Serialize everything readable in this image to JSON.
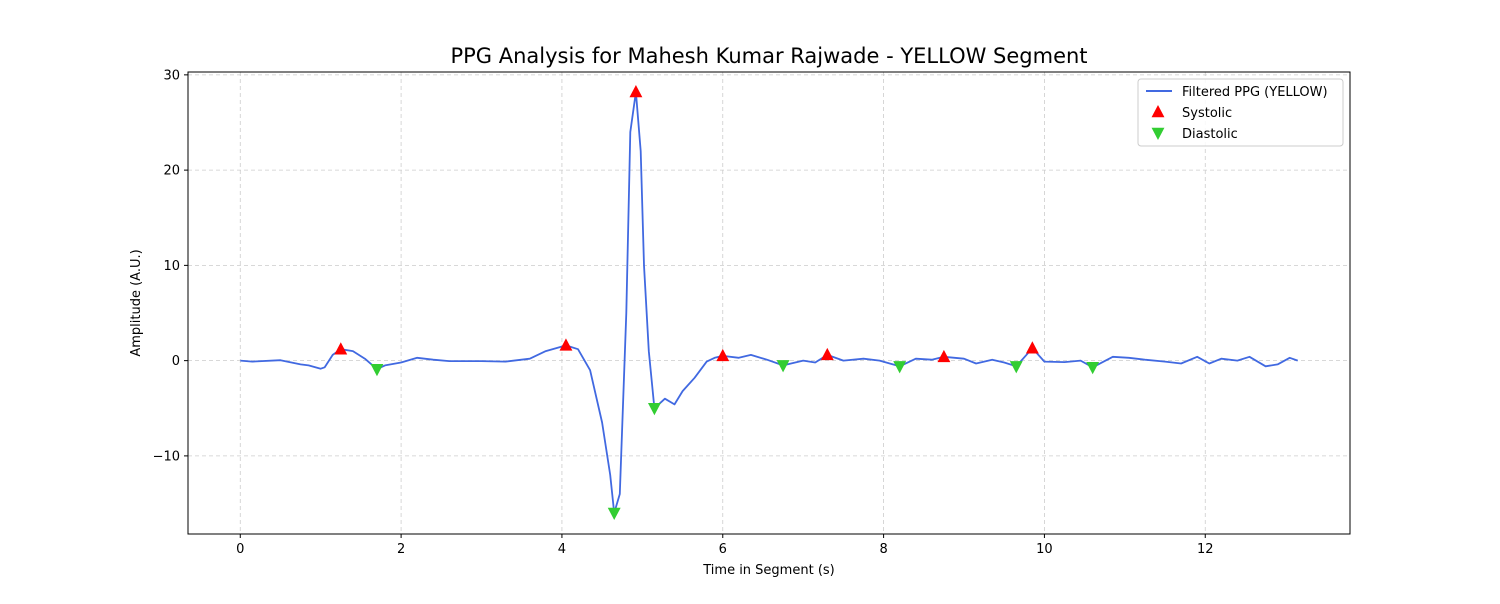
{
  "chart_data": {
    "type": "line",
    "title": "PPG Analysis for Mahesh Kumar Rajwade - YELLOW Segment",
    "xlabel": "Time in Segment (s)",
    "ylabel": "Amplitude (A.U.)",
    "xlim": [
      -0.65,
      13.8
    ],
    "ylim": [
      -18.2,
      30.3
    ],
    "x_ticks": [
      0,
      2,
      4,
      6,
      8,
      10,
      12
    ],
    "y_ticks": [
      -10,
      0,
      10,
      20,
      30
    ],
    "y_tick_labels": [
      "−10",
      "0",
      "10",
      "20",
      "30"
    ],
    "grid": true,
    "legend_position": "top-right",
    "colors": {
      "line": "#4169e1",
      "systolic": "#ff0000",
      "diastolic": "#32cd32",
      "grid": "#cccccc"
    },
    "series": [
      {
        "name": "Filtered PPG (YELLOW)",
        "kind": "line",
        "points": [
          [
            0,
            0
          ],
          [
            0.15,
            -0.1
          ],
          [
            0.5,
            0.05
          ],
          [
            0.75,
            -0.4
          ],
          [
            0.85,
            -0.5
          ],
          [
            1.0,
            -0.85
          ],
          [
            1.05,
            -0.7
          ],
          [
            1.15,
            0.6
          ],
          [
            1.25,
            1.2
          ],
          [
            1.4,
            1.0
          ],
          [
            1.55,
            0.2
          ],
          [
            1.7,
            -0.9
          ],
          [
            1.8,
            -0.5
          ],
          [
            2.0,
            -0.2
          ],
          [
            2.2,
            0.3
          ],
          [
            2.4,
            0.1
          ],
          [
            2.6,
            -0.05
          ],
          [
            3.0,
            -0.05
          ],
          [
            3.3,
            -0.1
          ],
          [
            3.6,
            0.2
          ],
          [
            3.8,
            1.0
          ],
          [
            4.05,
            1.6
          ],
          [
            4.2,
            1.2
          ],
          [
            4.35,
            -1.0
          ],
          [
            4.5,
            -6.5
          ],
          [
            4.6,
            -12.0
          ],
          [
            4.65,
            -16.0
          ],
          [
            4.72,
            -14.0
          ],
          [
            4.8,
            5.0
          ],
          [
            4.85,
            24.0
          ],
          [
            4.92,
            28.2
          ],
          [
            4.98,
            22.0
          ],
          [
            5.02,
            10.0
          ],
          [
            5.08,
            1.0
          ],
          [
            5.15,
            -5.0
          ],
          [
            5.28,
            -4.0
          ],
          [
            5.4,
            -4.6
          ],
          [
            5.5,
            -3.2
          ],
          [
            5.65,
            -1.8
          ],
          [
            5.8,
            -0.1
          ],
          [
            5.9,
            0.3
          ],
          [
            6.0,
            0.5
          ],
          [
            6.2,
            0.3
          ],
          [
            6.35,
            0.6
          ],
          [
            6.55,
            0.1
          ],
          [
            6.75,
            -0.5
          ],
          [
            7.0,
            0.0
          ],
          [
            7.15,
            -0.2
          ],
          [
            7.3,
            0.6
          ],
          [
            7.5,
            0.0
          ],
          [
            7.75,
            0.2
          ],
          [
            7.95,
            0.0
          ],
          [
            8.2,
            -0.6
          ],
          [
            8.4,
            0.2
          ],
          [
            8.6,
            0.1
          ],
          [
            8.75,
            0.4
          ],
          [
            9.0,
            0.2
          ],
          [
            9.15,
            -0.3
          ],
          [
            9.35,
            0.1
          ],
          [
            9.5,
            -0.2
          ],
          [
            9.65,
            -0.6
          ],
          [
            9.85,
            1.3
          ],
          [
            10.0,
            -0.1
          ],
          [
            10.25,
            -0.15
          ],
          [
            10.45,
            0.0
          ],
          [
            10.6,
            -0.7
          ],
          [
            10.85,
            0.4
          ],
          [
            11.05,
            0.3
          ],
          [
            11.25,
            0.1
          ],
          [
            11.5,
            -0.1
          ],
          [
            11.7,
            -0.3
          ],
          [
            11.9,
            0.4
          ],
          [
            12.05,
            -0.3
          ],
          [
            12.2,
            0.2
          ],
          [
            12.4,
            0.0
          ],
          [
            12.55,
            0.4
          ],
          [
            12.75,
            -0.6
          ],
          [
            12.9,
            -0.4
          ],
          [
            13.05,
            0.3
          ],
          [
            13.15,
            0.0
          ]
        ]
      },
      {
        "name": "Systolic",
        "kind": "marker-up",
        "points": [
          [
            1.25,
            1.2
          ],
          [
            4.05,
            1.6
          ],
          [
            4.92,
            28.2
          ],
          [
            6.0,
            0.5
          ],
          [
            7.3,
            0.6
          ],
          [
            8.75,
            0.4
          ],
          [
            9.85,
            1.3
          ]
        ]
      },
      {
        "name": "Diastolic",
        "kind": "marker-down",
        "points": [
          [
            1.7,
            -0.9
          ],
          [
            4.65,
            -16.0
          ],
          [
            5.15,
            -5.0
          ],
          [
            6.75,
            -0.5
          ],
          [
            8.2,
            -0.6
          ],
          [
            9.65,
            -0.6
          ],
          [
            10.6,
            -0.7
          ]
        ]
      }
    ]
  }
}
